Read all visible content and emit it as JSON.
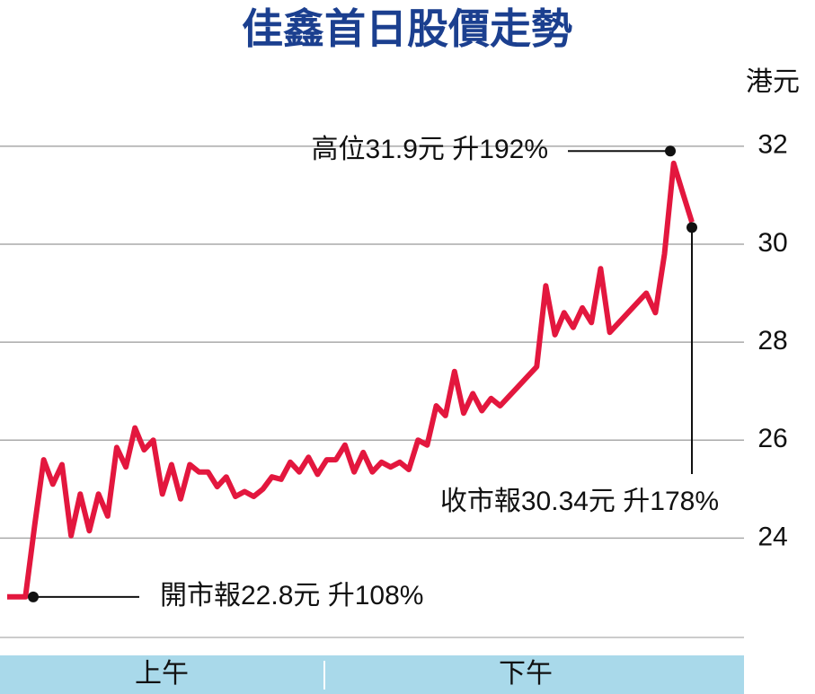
{
  "chart_data": {
    "type": "line",
    "title": "佳鑫首日股價走勢",
    "y_unit": "港元",
    "sessions": [
      "上午",
      "下午"
    ],
    "color": "#e3173e",
    "grid": true,
    "ylim": [
      22,
      33
    ],
    "yticks": [
      24,
      26,
      28,
      30,
      32
    ],
    "values": [
      22.8,
      22.8,
      22.8,
      24.25,
      25.6,
      25.1,
      25.5,
      24.05,
      24.9,
      24.15,
      24.9,
      24.45,
      25.85,
      25.45,
      26.25,
      25.8,
      26.0,
      24.9,
      25.5,
      24.8,
      25.5,
      25.35,
      25.35,
      25.05,
      25.25,
      24.85,
      24.95,
      24.85,
      25.0,
      25.25,
      25.2,
      25.55,
      25.35,
      25.65,
      25.3,
      25.6,
      25.6,
      25.9,
      25.35,
      25.75,
      25.35,
      25.55,
      25.45,
      25.55,
      25.4,
      26.0,
      25.9,
      26.7,
      26.5,
      27.4,
      26.55,
      26.95,
      26.6,
      26.85,
      26.7,
      26.9,
      27.1,
      27.3,
      27.5,
      29.15,
      28.15,
      28.6,
      28.3,
      28.7,
      28.4,
      29.5,
      28.2,
      28.4,
      28.6,
      28.8,
      29.0,
      28.6,
      29.8,
      31.65,
      31.05,
      30.45
    ],
    "annotations": [
      {
        "text": "開市報22.8元  升108%",
        "value": 22.8
      },
      {
        "text": "高位31.9元  升192%",
        "value": 31.9
      },
      {
        "text": "收市報30.34元  升178%",
        "value": 30.34
      }
    ]
  }
}
